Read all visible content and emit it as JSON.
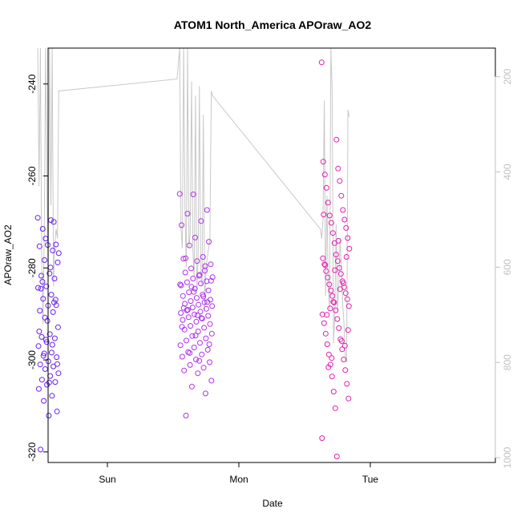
{
  "chart_data": {
    "type": "scatter",
    "title": "ATOM1 North_America APOraw_AO2",
    "xlabel": "Date",
    "ylabel": "APOraw_AO2",
    "x_ticks": [
      "Sun",
      "Mon",
      "Tue"
    ],
    "y_ticks": [
      -240,
      -260,
      -280,
      -300,
      -320
    ],
    "y2_ticks": [
      200,
      400,
      600,
      800,
      1000
    ],
    "ylim": [
      -322.3,
      -232.2
    ],
    "y2lim": [
      1010,
      140
    ],
    "grid": false,
    "colors": {
      "points_early": "#6a20f0",
      "points_mid": "#b030ee",
      "points_late": "#e020b0",
      "line": "#c8c8c8",
      "y2_axis": "#c0c0c0",
      "frame": "#000000"
    },
    "series": [
      {
        "x_start": -0.53,
        "x_end": -0.37,
        "values": [
          -269.1,
          -269.6,
          -271.5,
          -274.9,
          -275.0,
          -275.3,
          -276.2,
          -278.3,
          -278.8,
          -281.2,
          -281.7,
          -282.3,
          -284.0,
          -284.3,
          -285.8,
          -286.7,
          -288.1,
          -288.2,
          -289.3,
          -289.6,
          -290.8,
          -292.9,
          -294.4,
          -295.0,
          -295.3,
          -296.1,
          -297.0,
          -298.4,
          -299.1,
          -299.4,
          -300.3,
          -301.0,
          -301.4,
          -302.0,
          -302.9,
          -303.5,
          -304.3,
          -304.8,
          -305.4,
          -306.3,
          -307.8,
          -308.9,
          -311.2,
          -312.1,
          -319.5,
          -270.0,
          -273.6,
          -276.8,
          -279.9,
          -283.0,
          -286.9,
          -291.5,
          -293.8,
          -296.7,
          -298.6,
          -300.9,
          -304.9,
          -284.5,
          -287.5,
          -295.6
        ]
      },
      {
        "x_start": 0.55,
        "x_end": 0.8,
        "values": [
          -263.9,
          -264.0,
          -267.4,
          -268.2,
          -269.8,
          -270.7,
          -273.4,
          -274.3,
          -275.1,
          -277.6,
          -278.0,
          -278.5,
          -279.2,
          -280.1,
          -280.6,
          -281.0,
          -281.7,
          -282.0,
          -282.3,
          -282.9,
          -283.1,
          -283.4,
          -283.8,
          -284.5,
          -284.9,
          -285.3,
          -285.8,
          -286.1,
          -286.5,
          -286.9,
          -287.2,
          -287.5,
          -287.8,
          -288.0,
          -288.3,
          -288.6,
          -288.9,
          -289.2,
          -289.5,
          -289.8,
          -290.1,
          -290.4,
          -290.7,
          -291.0,
          -291.3,
          -291.7,
          -292.2,
          -292.6,
          -293.0,
          -293.4,
          -293.8,
          -294.3,
          -294.8,
          -295.3,
          -295.8,
          -296.3,
          -296.8,
          -297.3,
          -297.8,
          -298.3,
          -298.8,
          -299.3,
          -299.9,
          -300.5,
          -301.1,
          -301.7,
          -302.3,
          -302.9,
          -304.5,
          -305.8,
          -307.3,
          -312.1,
          -281.5,
          -283.6,
          -285.2,
          -287.4,
          -289.1,
          -290.9,
          -292.8,
          -294.7,
          -296.6,
          -298.5,
          -286.2,
          -288.7,
          -290.3,
          -282.8,
          -284.1,
          -279.6,
          -277.9,
          -300.2
        ]
      },
      {
        "x_start": 1.63,
        "x_end": 1.84,
        "values": [
          -235.3,
          -252.1,
          -256.9,
          -258.4,
          -259.7,
          -261.1,
          -262.6,
          -264.3,
          -265.8,
          -267.4,
          -268.6,
          -269.5,
          -270.2,
          -271.3,
          -272.4,
          -273.5,
          -274.6,
          -275.8,
          -277.1,
          -277.9,
          -278.5,
          -279.2,
          -280.0,
          -280.7,
          -281.3,
          -282.1,
          -282.9,
          -283.6,
          -284.2,
          -284.9,
          -285.5,
          -286.1,
          -286.8,
          -287.5,
          -288.3,
          -289.2,
          -290.1,
          -291.1,
          -292.0,
          -293.1,
          -294.3,
          -295.5,
          -296.6,
          -297.7,
          -298.8,
          -299.9,
          -301.0,
          -302.2,
          -303.6,
          -305.2,
          -306.9,
          -308.4,
          -310.5,
          -317.0,
          -321.0,
          -268.4,
          -274.1,
          -279.4,
          -284.6,
          -290.2,
          -295.9,
          -301.6,
          -283.3,
          -288.8,
          -296.9,
          -299.6,
          -277.6,
          -287.4,
          -293.5,
          -280.5
        ]
      }
    ],
    "line_series": {
      "points": [
        [
          -0.53,
          140
        ],
        [
          -0.52,
          430
        ],
        [
          -0.51,
          140
        ],
        [
          -0.5,
          580
        ],
        [
          -0.49,
          720
        ],
        [
          -0.48,
          520
        ],
        [
          -0.47,
          140
        ],
        [
          -0.46,
          450
        ],
        [
          -0.45,
          600
        ],
        [
          -0.44,
          140
        ],
        [
          -0.43,
          470
        ],
        [
          -0.42,
          140
        ],
        [
          -0.41,
          640
        ],
        [
          -0.4,
          550
        ],
        [
          -0.39,
          520
        ],
        [
          -0.38,
          540
        ],
        [
          -0.37,
          230
        ],
        [
          0.53,
          205
        ],
        [
          0.55,
          140
        ],
        [
          0.56,
          520
        ],
        [
          0.57,
          560
        ],
        [
          0.58,
          140
        ],
        [
          0.59,
          480
        ],
        [
          0.6,
          600
        ],
        [
          0.61,
          140
        ],
        [
          0.62,
          560
        ],
        [
          0.63,
          530
        ],
        [
          0.64,
          210
        ],
        [
          0.65,
          560
        ],
        [
          0.66,
          620
        ],
        [
          0.67,
          240
        ],
        [
          0.68,
          650
        ],
        [
          0.69,
          580
        ],
        [
          0.7,
          220
        ],
        [
          0.71,
          600
        ],
        [
          0.72,
          640
        ],
        [
          0.73,
          280
        ],
        [
          0.74,
          690
        ],
        [
          0.75,
          600
        ],
        [
          0.77,
          560
        ],
        [
          0.78,
          540
        ],
        [
          0.79,
          230
        ],
        [
          0.8,
          240
        ],
        [
          1.62,
          520
        ],
        [
          1.63,
          540
        ],
        [
          1.64,
          500
        ],
        [
          1.65,
          250
        ],
        [
          1.66,
          660
        ],
        [
          1.67,
          450
        ],
        [
          1.68,
          640
        ],
        [
          1.69,
          690
        ],
        [
          1.7,
          140
        ],
        [
          1.71,
          230
        ],
        [
          1.72,
          760
        ],
        [
          1.73,
          700
        ],
        [
          1.74,
          510
        ],
        [
          1.75,
          690
        ],
        [
          1.76,
          640
        ],
        [
          1.77,
          540
        ],
        [
          1.78,
          600
        ],
        [
          1.79,
          680
        ],
        [
          1.8,
          720
        ],
        [
          1.81,
          790
        ],
        [
          1.82,
          800
        ],
        [
          1.83,
          270
        ],
        [
          1.84,
          285
        ]
      ]
    }
  }
}
